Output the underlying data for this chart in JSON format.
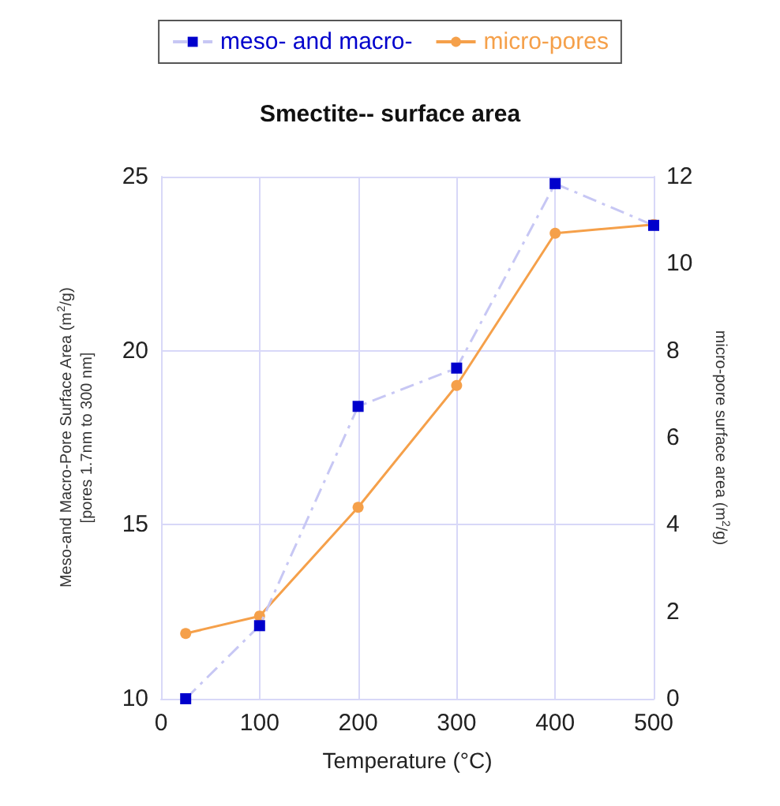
{
  "chart_data": {
    "type": "line",
    "title": "Smectite-- surface area",
    "xlabel": "Temperature (°C)",
    "ylabel": "Meso-and Macro-Pore Surface Area (m$^{2}$/g)\n[pores 1.7nm to 300 nm]",
    "y2label": "micro-pore surface area (m$^{2}$/g)",
    "x": [
      25,
      100,
      200,
      300,
      400,
      500
    ],
    "series": [
      {
        "name": "meso- and macro-",
        "color": "#0000cc",
        "marker": "square",
        "line_style": "dashed",
        "values": [
          10.0,
          12.1,
          18.4,
          19.5,
          24.8,
          23.6
        ]
      },
      {
        "name": "micro-pores",
        "color": "#f5a04a",
        "marker": "circle",
        "line_style": "solid",
        "axis": "y2",
        "values": [
          1.5,
          1.9,
          4.4,
          7.2,
          10.7,
          10.9
        ]
      }
    ],
    "xlim": [
      0,
      500
    ],
    "xticks": [
      0,
      100,
      200,
      300,
      400,
      500
    ],
    "ylim": [
      10,
      25
    ],
    "yticks": [
      10,
      15,
      20,
      25
    ],
    "y2lim": [
      0,
      12
    ],
    "y2ticks": [
      0,
      2,
      4,
      6,
      8,
      10,
      12
    ],
    "grid": true,
    "legend": "top"
  }
}
